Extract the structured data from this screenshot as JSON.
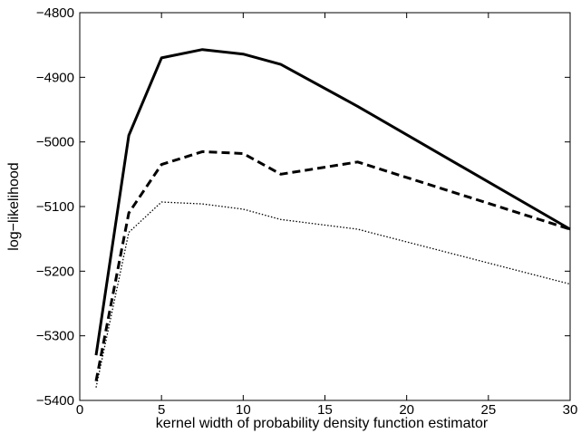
{
  "chart_data": {
    "type": "line",
    "title": "",
    "xlabel": "kernel width of probability density function estimator",
    "ylabel": "log−likelihood",
    "xlim": [
      0,
      30
    ],
    "ylim": [
      -5400,
      -4800
    ],
    "xticks": [
      0,
      5,
      10,
      15,
      20,
      25,
      30
    ],
    "yticks": [
      -5400,
      -5300,
      -5200,
      -5100,
      -5000,
      -4900,
      -4800
    ],
    "xtick_labels": [
      "0",
      "5",
      "10",
      "15",
      "20",
      "25",
      "30"
    ],
    "ytick_labels": [
      "−5400",
      "−5300",
      "−5200",
      "−5100",
      "−5000",
      "−4900",
      "−4800"
    ],
    "grid": false,
    "legend": null,
    "series": [
      {
        "style": "solid",
        "x": [
          1,
          3,
          5,
          7.5,
          10,
          12.3,
          17,
          30
        ],
        "y": [
          -5330,
          -4990,
          -4870,
          -4857,
          -4864,
          -4880,
          -4945,
          -5135
        ]
      },
      {
        "style": "dashed",
        "x": [
          1,
          3,
          5,
          7.5,
          10,
          12.3,
          17,
          30
        ],
        "y": [
          -5370,
          -5110,
          -5035,
          -5015,
          -5018,
          -5050,
          -5031,
          -5135
        ]
      },
      {
        "style": "dotted",
        "x": [
          1,
          3,
          5,
          7.5,
          10,
          12.3,
          17,
          30
        ],
        "y": [
          -5380,
          -5140,
          -5093,
          -5096,
          -5104,
          -5120,
          -5135,
          -5220
        ]
      }
    ]
  }
}
